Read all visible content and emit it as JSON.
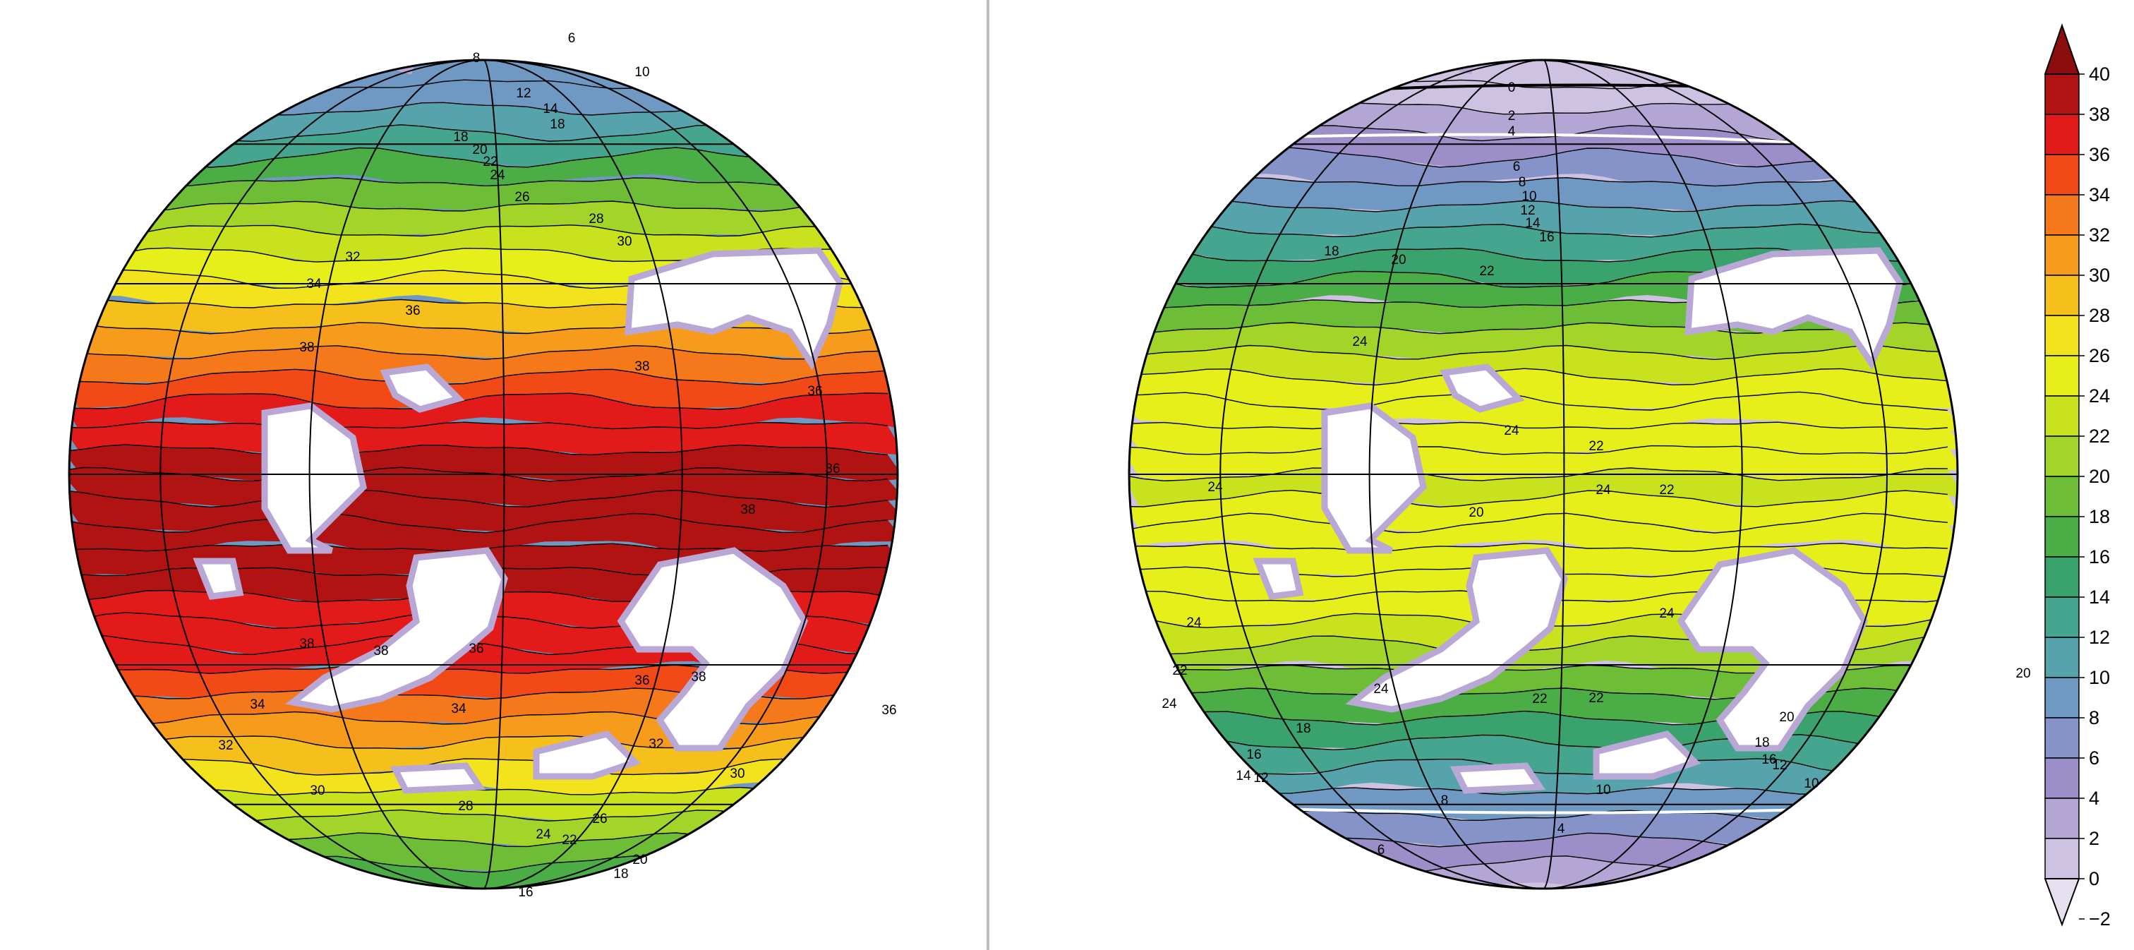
{
  "colorbar": {
    "tick_labels": [
      "40",
      "38",
      "36",
      "34",
      "32",
      "30",
      "28",
      "26",
      "24",
      "22",
      "20",
      "18",
      "16",
      "14",
      "12",
      "10",
      "8",
      "6",
      "4",
      "2",
      "0",
      "−2"
    ],
    "levels": [
      {
        "value": 38,
        "color": "#b11212"
      },
      {
        "value": 36,
        "color": "#e21a1a"
      },
      {
        "value": 34,
        "color": "#f24a16"
      },
      {
        "value": 32,
        "color": "#f5781a"
      },
      {
        "value": 30,
        "color": "#f79b1c"
      },
      {
        "value": 28,
        "color": "#f5bf1c"
      },
      {
        "value": 26,
        "color": "#f2e31c"
      },
      {
        "value": 24,
        "color": "#e7ef1a"
      },
      {
        "value": 22,
        "color": "#c9e21e"
      },
      {
        "value": 20,
        "color": "#a3d42a"
      },
      {
        "value": 18,
        "color": "#6dbe36"
      },
      {
        "value": 16,
        "color": "#4aad45"
      },
      {
        "value": 14,
        "color": "#3aa36d"
      },
      {
        "value": 12,
        "color": "#45a58f"
      },
      {
        "value": 10,
        "color": "#56a3ac"
      },
      {
        "value": 8,
        "color": "#6f98c2"
      },
      {
        "value": 6,
        "color": "#8593c8"
      },
      {
        "value": 4,
        "color": "#9c8fc9"
      },
      {
        "value": 2,
        "color": "#b3a6d4"
      },
      {
        "value": 0,
        "color": "#cdc2e2"
      }
    ],
    "over_color": "#8b0d0d",
    "under_color": "#e6dff0"
  },
  "maps": [
    {
      "name": "left-globe",
      "band_colors": [
        "#6f98c2",
        "#6f98c2",
        "#56a3ac",
        "#45a58f",
        "#4aad45",
        "#6dbe36",
        "#a3d42a",
        "#c9e21e",
        "#e7ef1a",
        "#f2e31c",
        "#f5bf1c",
        "#f79b1c",
        "#f5781a",
        "#f24a16",
        "#e21a1a",
        "#e21a1a",
        "#b11212",
        "#b11212",
        "#b11212",
        "#b11212",
        "#b11212",
        "#b11212",
        "#e21a1a",
        "#e21a1a",
        "#e21a1a",
        "#f24a16",
        "#f5781a",
        "#f79b1c",
        "#f5bf1c",
        "#f2e31c",
        "#c9e21e",
        "#a3d42a",
        "#6dbe36",
        "#4aad45"
      ],
      "contour_labels": [
        "6",
        "8",
        "10",
        "12",
        "14",
        "18",
        "18",
        "20",
        "22",
        "24",
        "26",
        "28",
        "30",
        "32",
        "34",
        "36",
        "38",
        "38",
        "36",
        "38",
        "36",
        "38",
        "38",
        "36",
        "36",
        "38",
        "34",
        "34",
        "36",
        "32",
        "32",
        "30",
        "30",
        "28",
        "26",
        "24",
        "22",
        "20",
        "18",
        "16"
      ]
    },
    {
      "name": "right-globe",
      "band_colors": [
        "#cdc2e2",
        "#cdc2e2",
        "#b3a6d4",
        "#9c8fc9",
        "#8593c8",
        "#6f98c2",
        "#56a3ac",
        "#45a58f",
        "#3aa36d",
        "#4aad45",
        "#6dbe36",
        "#a3d42a",
        "#c9e21e",
        "#e7ef1a",
        "#e7ef1a",
        "#e7ef1a",
        "#e7ef1a",
        "#c9e21e",
        "#e7ef1a",
        "#e7ef1a",
        "#e7ef1a",
        "#e7ef1a",
        "#e7ef1a",
        "#c9e21e",
        "#a3d42a",
        "#6dbe36",
        "#4aad45",
        "#3aa36d",
        "#45a58f",
        "#56a3ac",
        "#6f98c2",
        "#8593c8",
        "#9c8fc9",
        "#b3a6d4"
      ],
      "contour_labels": [
        "0",
        "2",
        "4",
        "6",
        "8",
        "10",
        "12",
        "14",
        "16",
        "18",
        "20",
        "22",
        "24",
        "24",
        "22",
        "24",
        "24",
        "22",
        "24",
        "20",
        "24",
        "24",
        "22",
        "24",
        "22",
        "22",
        "24",
        "20",
        "20",
        "18",
        "18",
        "16",
        "16",
        "14",
        "12",
        "12",
        "10",
        "10",
        "8",
        "4",
        "6"
      ]
    }
  ]
}
